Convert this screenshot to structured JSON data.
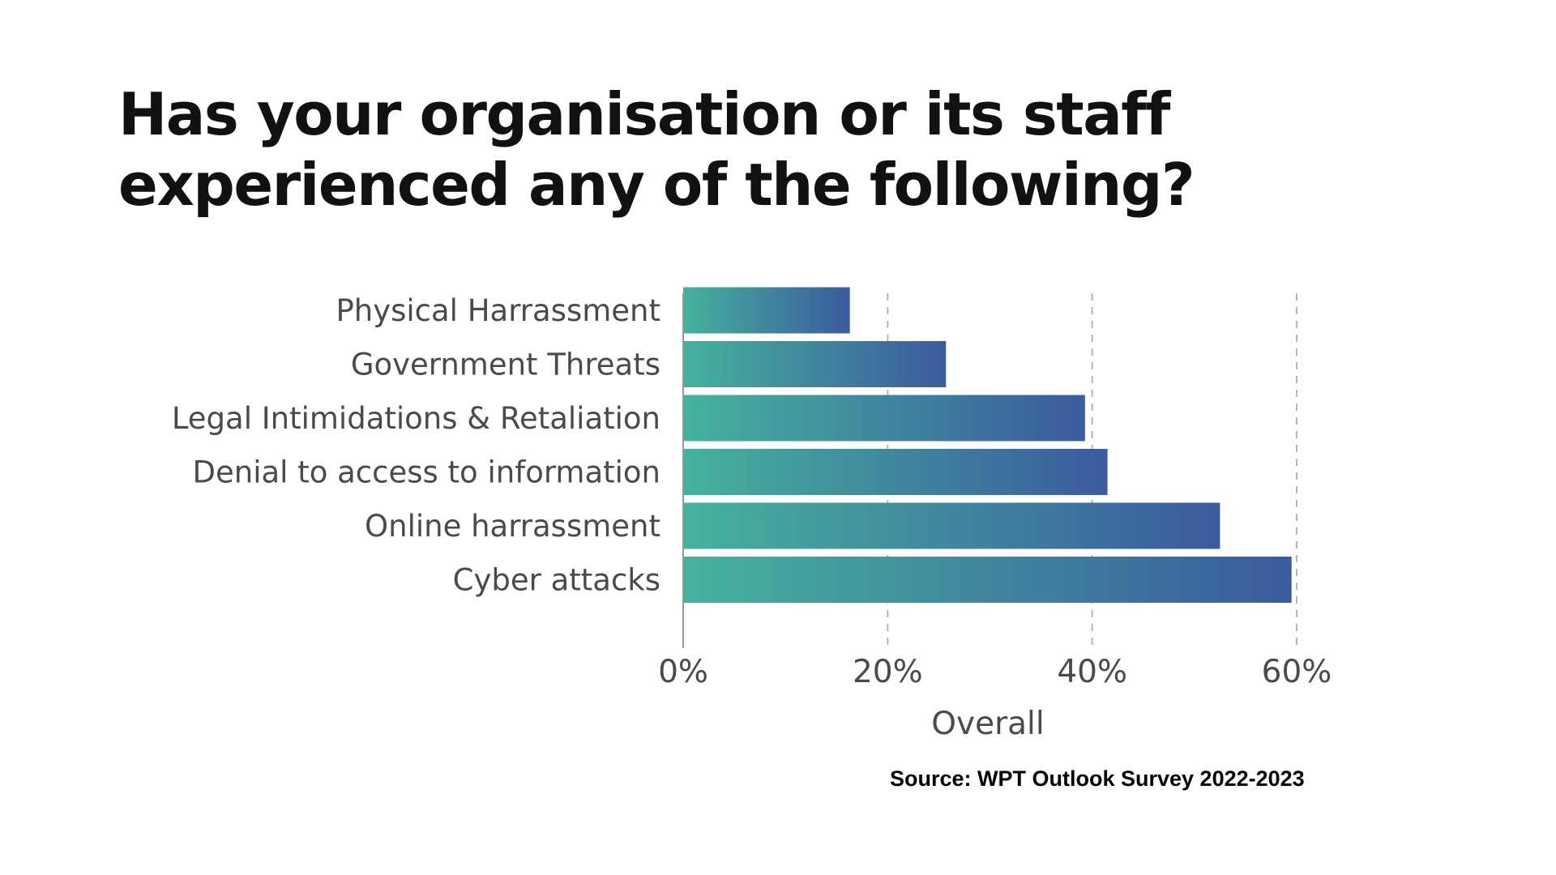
{
  "title_lines": [
    "Has your organisation or its staff",
    "experienced any of the following?"
  ],
  "source": "Source: WPT Outlook Survey 2022-2023",
  "colors": {
    "bar_gradient_start": "#45b29d",
    "bar_gradient_end": "#3b5b9e",
    "grid": "#b5b5b5",
    "axis": "#999999",
    "text": "#4a4a4a"
  },
  "chart_data": {
    "type": "bar",
    "orientation": "horizontal",
    "categories": [
      "Physical Harrassment",
      "Government Threats",
      "Legal Intimidations & Retaliation",
      "Denial to access to information",
      "Online harrassment",
      "Cyber attacks"
    ],
    "values": [
      16.3,
      25.7,
      39.3,
      41.5,
      52.5,
      59.5
    ],
    "xlabel": "Overall",
    "xlim": [
      0,
      60
    ],
    "xticks": [
      0,
      20,
      40,
      60
    ],
    "xtick_labels": [
      "0%",
      "20%",
      "40%",
      "60%"
    ],
    "grid": "vertical dashed"
  }
}
